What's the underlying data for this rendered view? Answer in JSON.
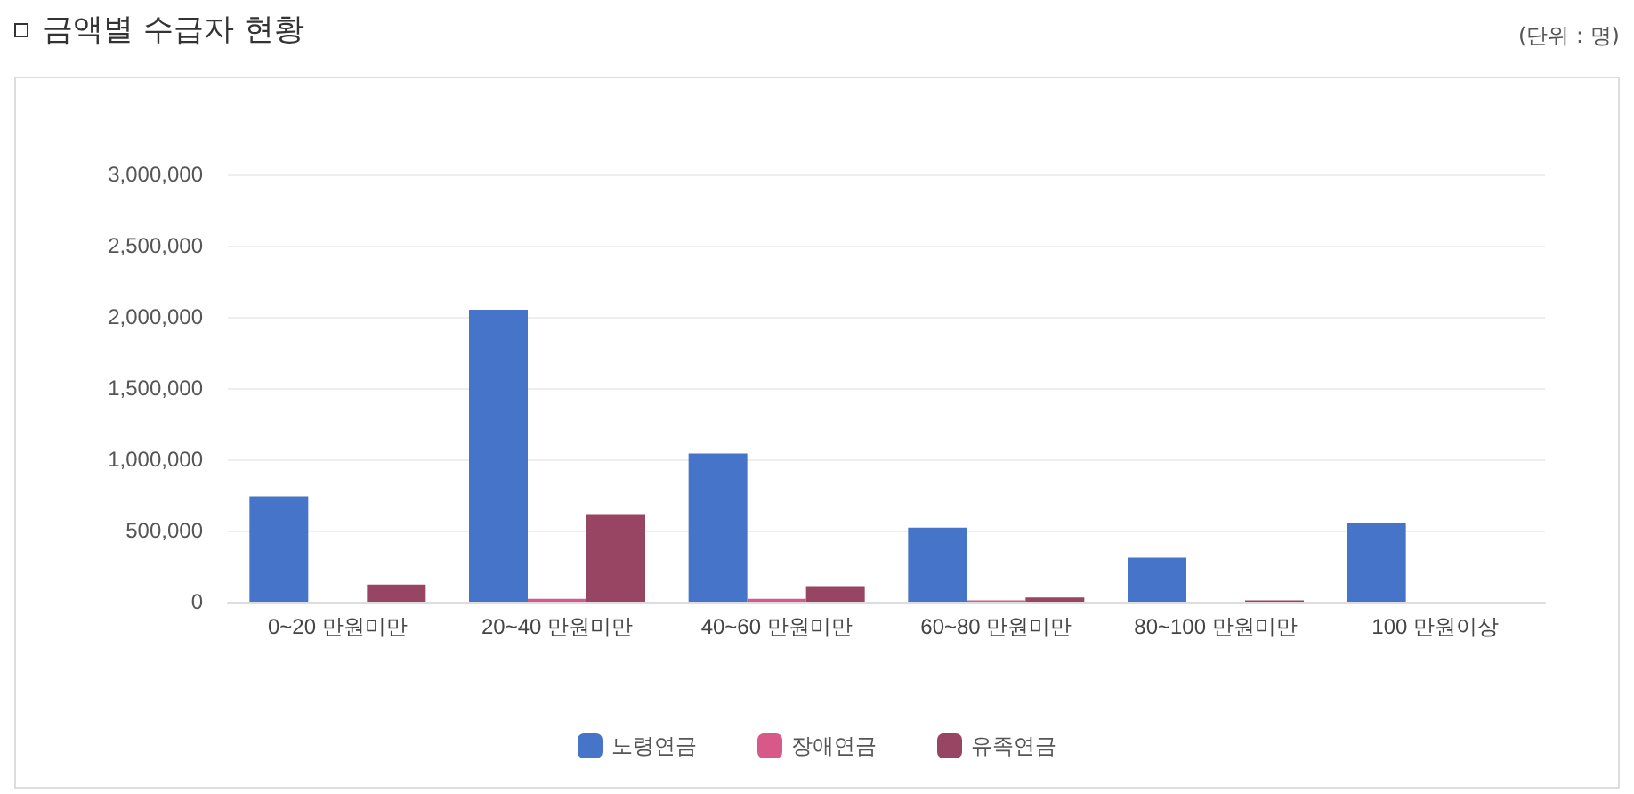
{
  "chart_data": {
    "type": "bar",
    "title": "금액별 수급자 현황",
    "annotations": [
      "(단위 : 명)"
    ],
    "categories": [
      "0~20 만원미만",
      "20~40 만원미만",
      "40~60 만원미만",
      "60~80 만원미만",
      "80~100 만원미만",
      "100 만원이상"
    ],
    "series": [
      {
        "name": "노령연금",
        "color": "#4674c8",
        "values": [
          740000,
          2050000,
          1040000,
          520000,
          310000,
          550000
        ]
      },
      {
        "name": "장애연금",
        "color": "#d9588a",
        "values": [
          0,
          20000,
          20000,
          10000,
          0,
          0
        ]
      },
      {
        "name": "유족연금",
        "color": "#984563",
        "values": [
          120000,
          610000,
          110000,
          30000,
          10000,
          0
        ]
      }
    ],
    "ylim": [
      0,
      3000000
    ],
    "yticks": [
      0,
      {
        "value": 500000,
        "label": "500,000"
      },
      {
        "value": 1000000,
        "label": "1,000,000"
      },
      {
        "value": 1500000,
        "label": "1,500,000"
      },
      {
        "value": 2000000,
        "label": "2,000,000"
      },
      {
        "value": 2500000,
        "label": "2,500,000"
      },
      {
        "value": 3000000,
        "label": "3,000,000"
      }
    ],
    "grid": "y",
    "legend": "bottom"
  }
}
